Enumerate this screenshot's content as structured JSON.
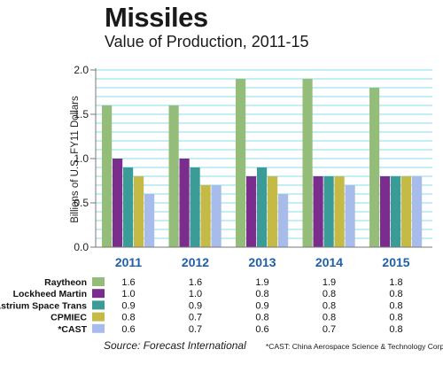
{
  "chart_data": {
    "type": "bar",
    "title": "Missiles",
    "subtitle": "Value of Production, 2011-15",
    "ylabel": "Billions of U.S. FY11 Dollars",
    "xlabel": "",
    "ylim": [
      0,
      2.0
    ],
    "yticks": [
      "0.0",
      "0.5",
      "1.0",
      "1.5",
      "2.0"
    ],
    "categories": [
      "2011",
      "2012",
      "2013",
      "2014",
      "2015"
    ],
    "grid": true,
    "series": [
      {
        "name": "Raytheon",
        "color": "#95bd7a",
        "values": [
          1.6,
          1.6,
          1.9,
          1.9,
          1.8
        ],
        "labels": [
          "1.6",
          "1.6",
          "1.9",
          "1.9",
          "1.8"
        ]
      },
      {
        "name": "Lockheed Martin",
        "color": "#7b2d8e",
        "values": [
          1.0,
          1.0,
          0.8,
          0.8,
          0.8
        ],
        "labels": [
          "1.0",
          "1.0",
          "0.8",
          "0.8",
          "0.8"
        ]
      },
      {
        "name": "Astrium Space Trans",
        "color": "#3b9b97",
        "values": [
          0.9,
          0.9,
          0.9,
          0.8,
          0.8
        ],
        "labels": [
          "0.9",
          "0.9",
          "0.9",
          "0.8",
          "0.8"
        ]
      },
      {
        "name": "CPMIEC",
        "color": "#c4ba45",
        "values": [
          0.8,
          0.7,
          0.8,
          0.8,
          0.8
        ],
        "labels": [
          "0.8",
          "0.7",
          "0.8",
          "0.8",
          "0.8"
        ]
      },
      {
        "name": "*CAST",
        "color": "#a8bcec",
        "values": [
          0.6,
          0.7,
          0.6,
          0.7,
          0.8
        ],
        "labels": [
          "0.6",
          "0.7",
          "0.6",
          "0.7",
          "0.8"
        ]
      }
    ],
    "source": "Source:  Forecast International",
    "footnote": "*CAST: China Aerospace Science & Technology Corp."
  },
  "colors": {
    "grid": "#5fd0e6",
    "year_label": "#1f5fa8",
    "axis": "#777777"
  }
}
